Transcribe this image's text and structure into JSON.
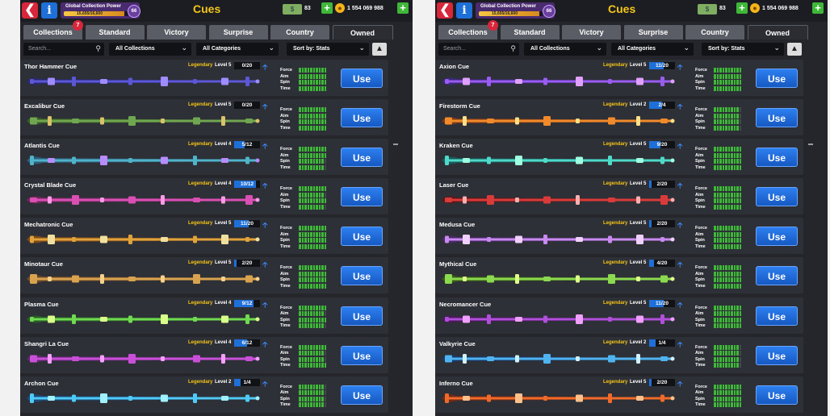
{
  "header": {
    "title": "Cues",
    "collection_power_label": "Global Collection Power",
    "collection_power_value": "15,655/16,600",
    "collection_power_fraction": 0.94,
    "collection_level": "66",
    "cash": "83",
    "coins": "1 554 069 988"
  },
  "tabs": [
    {
      "label": "Collections",
      "badge": "7"
    },
    {
      "label": "Standard"
    },
    {
      "label": "Victory"
    },
    {
      "label": "Surprise"
    },
    {
      "label": "Country"
    },
    {
      "label": "Owned",
      "active": true
    }
  ],
  "filters": {
    "search_placeholder": "Search...",
    "collection": "All Collections",
    "category": "All Categories",
    "sort": "Sort by: Stats"
  },
  "stat_labels": [
    "Force",
    "Aim",
    "Spin",
    "Time"
  ],
  "use_label": "Use",
  "colors": {
    "accent": "#f5c518",
    "button": "#1e6fd8",
    "bar": "#3fb83a"
  },
  "left_cues": [
    {
      "name": "Thor Hammer Cue",
      "rarity": "Legendary",
      "level": "Level 5",
      "progress": "0/20",
      "fill": 0.0,
      "stats": [
        10,
        10,
        10,
        10
      ],
      "palette": [
        "#5b57d6",
        "#9f8cff",
        "#2a2a6b"
      ]
    },
    {
      "name": "Excalibur Cue",
      "rarity": "Legendary",
      "level": "Level 5",
      "progress": "0/20",
      "fill": 0.0,
      "stats": [
        10,
        10,
        10,
        10
      ],
      "palette": [
        "#6fa64f",
        "#d9c26a",
        "#3a5a2a"
      ]
    },
    {
      "name": "Atlantis Cue",
      "rarity": "Legendary",
      "level": "Level 4",
      "progress": "5/12",
      "fill": 0.42,
      "stats": [
        10,
        10,
        9,
        9
      ],
      "palette": [
        "#4fb3c9",
        "#b88cff",
        "#2f5c78"
      ]
    },
    {
      "name": "Crystal Blade Cue",
      "rarity": "Legendary",
      "level": "Level 4",
      "progress": "10/12",
      "fill": 0.83,
      "stats": [
        10,
        9,
        10,
        9
      ],
      "palette": [
        "#d94fb3",
        "#ff9be6",
        "#6b2a5a"
      ]
    },
    {
      "name": "Mechatronic Cue",
      "rarity": "Legendary",
      "level": "Level 5",
      "progress": "11/20",
      "fill": 0.55,
      "stats": [
        10,
        10,
        10,
        10
      ],
      "palette": [
        "#e0a23a",
        "#f0e0a0",
        "#7a4a1a"
      ]
    },
    {
      "name": "Minotaur Cue",
      "rarity": "Legendary",
      "level": "Level 5",
      "progress": "2/20",
      "fill": 0.1,
      "stats": [
        10,
        10,
        10,
        10
      ],
      "palette": [
        "#d9a24f",
        "#f5d08a",
        "#6b4a2a"
      ]
    },
    {
      "name": "Plasma Cue",
      "rarity": "Legendary",
      "level": "Level 4",
      "progress": "9/12",
      "fill": 0.75,
      "stats": [
        10,
        9,
        10,
        9
      ],
      "palette": [
        "#6fd94f",
        "#d9ff8a",
        "#2a5a2a"
      ]
    },
    {
      "name": "Shangri La Cue",
      "rarity": "Legendary",
      "level": "Level 4",
      "progress": "6/12",
      "fill": 0.5,
      "stats": [
        10,
        9,
        9,
        10
      ],
      "palette": [
        "#c94fd9",
        "#f5a0ff",
        "#5a2a6b"
      ]
    },
    {
      "name": "Archon Cue",
      "rarity": "Legendary",
      "level": "Level 2",
      "progress": "1/4",
      "fill": 0.25,
      "stats": [
        9,
        9,
        9,
        9
      ],
      "palette": [
        "#4fc9f5",
        "#a0f0ff",
        "#1a4a7a"
      ]
    }
  ],
  "right_cues": [
    {
      "name": "Axion Cue",
      "rarity": "Legendary",
      "level": "Level 5",
      "progress": "11/20",
      "fill": 0.55,
      "stats": [
        10,
        10,
        10,
        10
      ],
      "palette": [
        "#9a5bf0",
        "#e0a0ff",
        "#3a2a7a"
      ]
    },
    {
      "name": "Firestorm Cue",
      "rarity": "Legendary",
      "level": "Level 2",
      "progress": "2/4",
      "fill": 0.5,
      "stats": [
        9,
        9,
        9,
        9
      ],
      "palette": [
        "#f08a2a",
        "#ffe08a",
        "#7a3a1a"
      ]
    },
    {
      "name": "Kraken Cue",
      "rarity": "Legendary",
      "level": "Level 5",
      "progress": "9/20",
      "fill": 0.45,
      "stats": [
        10,
        10,
        10,
        10
      ],
      "palette": [
        "#4fd9c9",
        "#a0ffe0",
        "#1a5a5a"
      ]
    },
    {
      "name": "Laser Cue",
      "rarity": "Legendary",
      "level": "Level 5",
      "progress": "2/20",
      "fill": 0.1,
      "stats": [
        10,
        10,
        10,
        10
      ],
      "palette": [
        "#d93a3a",
        "#ffb0b0",
        "#5a1a1a"
      ]
    },
    {
      "name": "Medusa Cue",
      "rarity": "Legendary",
      "level": "Level 5",
      "progress": "2/20",
      "fill": 0.1,
      "stats": [
        10,
        10,
        10,
        10
      ],
      "palette": [
        "#c98af0",
        "#f0d0ff",
        "#4a2a6b"
      ]
    },
    {
      "name": "Mythical Cue",
      "rarity": "Legendary",
      "level": "Level 5",
      "progress": "4/20",
      "fill": 0.2,
      "stats": [
        10,
        10,
        10,
        10
      ],
      "palette": [
        "#8ad94f",
        "#e0ff8a",
        "#3a5a1a"
      ]
    },
    {
      "name": "Necromancer Cue",
      "rarity": "Legendary",
      "level": "Level 5",
      "progress": "11/20",
      "fill": 0.55,
      "stats": [
        10,
        10,
        10,
        10
      ],
      "palette": [
        "#b04fd9",
        "#f0a0ff",
        "#4a1a5a"
      ]
    },
    {
      "name": "Valkyrie Cue",
      "rarity": "Legendary",
      "level": "Level 2",
      "progress": "1/4",
      "fill": 0.25,
      "stats": [
        9,
        9,
        9,
        9
      ],
      "palette": [
        "#4fb3f0",
        "#d0f0ff",
        "#1a3a6b"
      ]
    },
    {
      "name": "Inferno Cue",
      "rarity": "Legendary",
      "level": "Level 5",
      "progress": "2/20",
      "fill": 0.1,
      "stats": [
        10,
        10,
        10,
        10
      ],
      "palette": [
        "#f06a2a",
        "#ffc08a",
        "#6b2a1a"
      ]
    }
  ]
}
